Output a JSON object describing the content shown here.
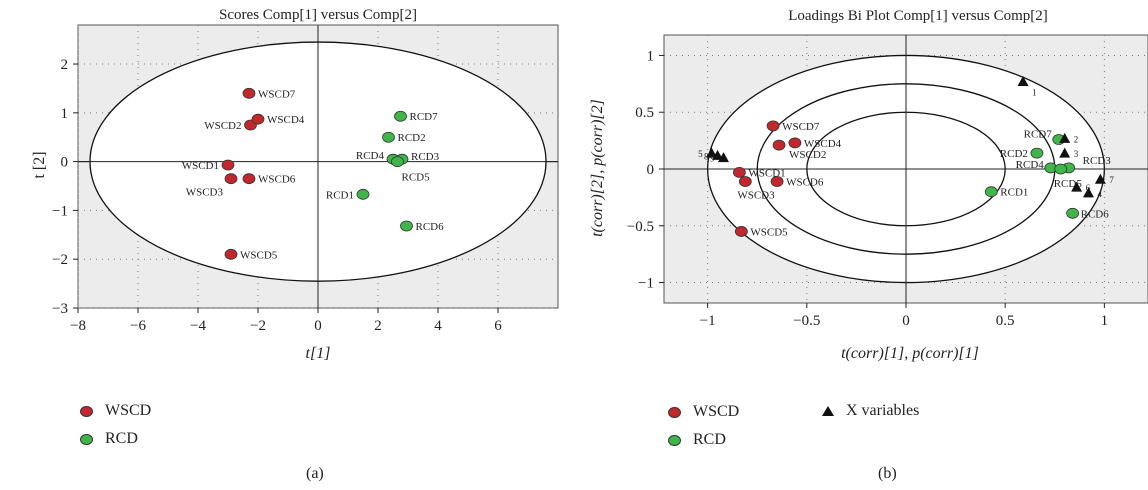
{
  "colors": {
    "WSCD": "#c0282d",
    "RCD": "#3fb54a",
    "X": "#111111",
    "plot_bg": "#ececec"
  },
  "chart_data": [
    {
      "type": "scatter",
      "title": "Scores Comp[1] versus Comp[2]",
      "xlabel": "t[1]",
      "ylabel": "t [2]",
      "xlim": [
        -8,
        8
      ],
      "ylim": [
        -3,
        2.8
      ],
      "xticks": [
        -8,
        -6,
        -4,
        -2,
        0,
        2,
        4,
        6
      ],
      "yticks": [
        -3,
        -2,
        -1,
        0,
        1,
        2
      ],
      "xticklabels": [
        "−8",
        "−6",
        "−4",
        "−2",
        "0",
        "2",
        "4",
        "6"
      ],
      "yticklabels": [
        "−3",
        "−2",
        "−1",
        "0",
        "1",
        "2"
      ],
      "grid": true,
      "ellipse": {
        "rx": 7.6,
        "ry": 2.45
      },
      "series": [
        {
          "name": "WSCD",
          "points": [
            {
              "label": "WSCD7",
              "x": -2.3,
              "y": 1.4
            },
            {
              "label": "WSCD2",
              "x": -2.25,
              "y": 0.75
            },
            {
              "label": "WSCD4",
              "x": -2.0,
              "y": 0.87
            },
            {
              "label": "WSCD1",
              "x": -3.0,
              "y": -0.07
            },
            {
              "label": "WSCD3",
              "x": -2.9,
              "y": -0.35
            },
            {
              "label": "WSCD6",
              "x": -2.3,
              "y": -0.35
            },
            {
              "label": "WSCD5",
              "x": -2.9,
              "y": -1.9
            }
          ]
        },
        {
          "name": "RCD",
          "points": [
            {
              "label": "RCD7",
              "x": 2.75,
              "y": 0.93
            },
            {
              "label": "RCD2",
              "x": 2.35,
              "y": 0.5
            },
            {
              "label": "RCD4",
              "x": 2.5,
              "y": 0.05
            },
            {
              "label": "RCD3",
              "x": 2.8,
              "y": 0.05
            },
            {
              "label": "RCD5",
              "x": 2.65,
              "y": 0.0
            },
            {
              "label": "RCD1",
              "x": 1.5,
              "y": -0.67
            },
            {
              "label": "RCD6",
              "x": 2.95,
              "y": -1.32
            }
          ]
        }
      ],
      "legend": {
        "position": "bottom-left",
        "entries": [
          "WSCD",
          "RCD"
        ]
      },
      "caption": "(a)"
    },
    {
      "type": "scatter",
      "title": "Loadings Bi Plot Comp[1] versus Comp[2]",
      "xlabel": "t(corr)[1], p(corr)[1]",
      "ylabel": "t(corr)[2], p(corr)[2]",
      "xlim": [
        -1.22,
        1.22
      ],
      "ylim": [
        -1.18,
        1.18
      ],
      "xticks": [
        -1,
        -0.5,
        0,
        0.5,
        1
      ],
      "yticks": [
        -1,
        -0.5,
        0,
        0.5,
        1
      ],
      "xticklabels": [
        "−1",
        "−0.5",
        "0",
        "0.5",
        "1"
      ],
      "yticklabels": [
        "−1",
        "−0.5",
        "0",
        "0.5",
        "1"
      ],
      "grid": true,
      "circles": [
        0.5,
        0.75,
        1.0
      ],
      "series": [
        {
          "name": "WSCD",
          "points": [
            {
              "label": "WSCD7",
              "x": -0.67,
              "y": 0.38
            },
            {
              "label": "WSCD4",
              "x": -0.56,
              "y": 0.23
            },
            {
              "label": "WSCD2",
              "x": -0.64,
              "y": 0.21
            },
            {
              "label": "WSCD1",
              "x": -0.84,
              "y": -0.03
            },
            {
              "label": "WSCD3",
              "x": -0.81,
              "y": -0.11
            },
            {
              "label": "WSCD6",
              "x": -0.65,
              "y": -0.11
            },
            {
              "label": "WSCD5",
              "x": -0.83,
              "y": -0.55
            }
          ]
        },
        {
          "name": "RCD",
          "points": [
            {
              "label": "RCD7",
              "x": 0.77,
              "y": 0.26
            },
            {
              "label": "RCD2",
              "x": 0.66,
              "y": 0.14
            },
            {
              "label": "RCD4",
              "x": 0.73,
              "y": 0.01
            },
            {
              "label": "RCD3",
              "x": 0.82,
              "y": 0.01
            },
            {
              "label": "RCD5",
              "x": 0.78,
              "y": 0.0
            },
            {
              "label": "RCD1",
              "x": 0.43,
              "y": -0.2
            },
            {
              "label": "RCD6",
              "x": 0.84,
              "y": -0.39
            }
          ]
        },
        {
          "name": "X variables",
          "points": [
            {
              "label": "1",
              "x": 0.59,
              "y": 0.77
            },
            {
              "label": "2",
              "x": 0.8,
              "y": 0.27
            },
            {
              "label": "3",
              "x": 0.8,
              "y": 0.14
            },
            {
              "label": "7",
              "x": 0.98,
              "y": -0.09
            },
            {
              "label": "6",
              "x": 0.86,
              "y": -0.16
            },
            {
              "label": "4",
              "x": 0.92,
              "y": -0.21
            },
            {
              "label": "5",
              "x": -0.98,
              "y": 0.14
            },
            {
              "label": "8",
              "x": -0.95,
              "y": 0.12
            },
            {
              "label": "9",
              "x": -0.92,
              "y": 0.1
            }
          ]
        }
      ],
      "legend": {
        "position": "bottom",
        "entries": [
          "WSCD",
          "RCD",
          "X variables"
        ]
      },
      "caption": "(b)"
    }
  ]
}
